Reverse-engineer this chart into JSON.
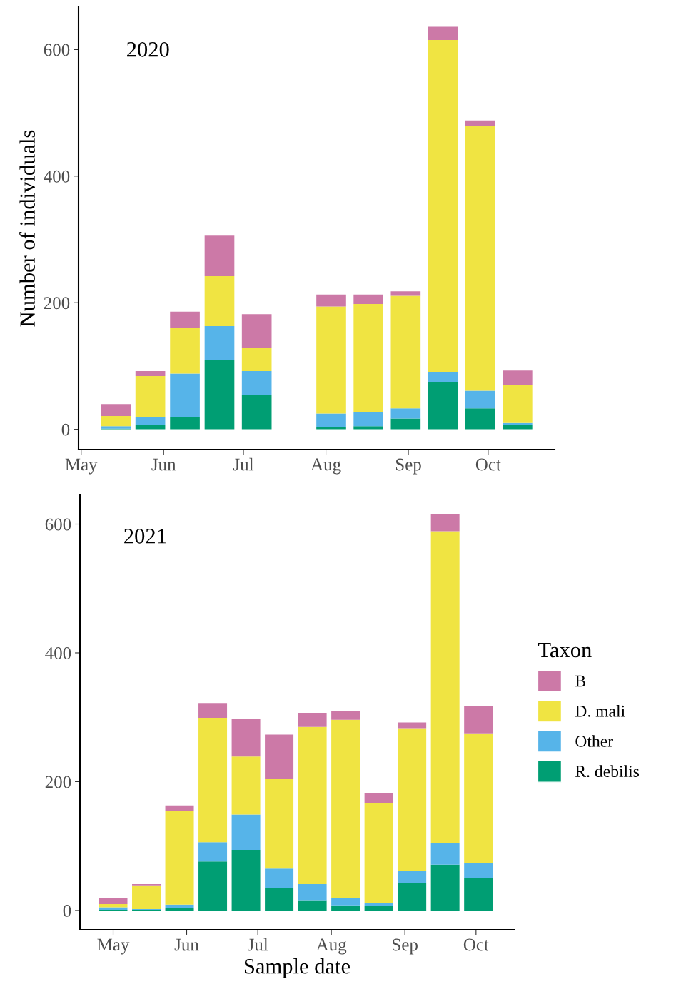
{
  "chart_data": [
    {
      "type": "bar",
      "stacked": true,
      "annotations": [
        "2020"
      ],
      "ylabel": "Number of individuals",
      "x": [
        "2020-05-14",
        "2020-05-27",
        "2020-06-09",
        "2020-06-22",
        "2020-07-06",
        "2020-08-03",
        "2020-08-17",
        "2020-08-31",
        "2020-09-14",
        "2020-09-28",
        "2020-10-12"
      ],
      "series": [
        {
          "color": "#009e73",
          "values": [
            1,
            7,
            20,
            110,
            54,
            4,
            5,
            17,
            75,
            33,
            7
          ]
        },
        {
          "color": "#56b4e9",
          "values": [
            4,
            12,
            68,
            53,
            38,
            21,
            22,
            16,
            15,
            28,
            3
          ]
        },
        {
          "color": "#f0e442",
          "values": [
            16,
            65,
            72,
            79,
            36,
            169,
            171,
            178,
            525,
            418,
            60
          ]
        },
        {
          "color": "#cc79a7",
          "values": [
            19,
            8,
            26,
            64,
            54,
            19,
            15,
            7,
            21,
            9,
            23
          ]
        }
      ],
      "xlim": [
        "2020-04-30",
        "2020-10-26"
      ],
      "ylim": [
        -32,
        667
      ],
      "yticks": [
        0,
        200,
        400,
        600
      ],
      "xticks": [
        {
          "value": "2020-05-01",
          "label": "May"
        },
        {
          "value": "2020-06-01",
          "label": "Jun"
        },
        {
          "value": "2020-07-01",
          "label": "Jul"
        },
        {
          "value": "2020-08-01",
          "label": "Aug"
        },
        {
          "value": "2020-09-01",
          "label": "Sep"
        },
        {
          "value": "2020-10-01",
          "label": "Oct"
        }
      ],
      "grid": false,
      "legend": false
    },
    {
      "type": "bar",
      "stacked": true,
      "annotations": [
        "2021"
      ],
      "xlabel": "Sample date",
      "legend_title": "Taxon",
      "x": [
        "2021-05-01",
        "2021-05-15",
        "2021-05-29",
        "2021-06-12",
        "2021-06-26",
        "2021-07-10",
        "2021-07-24",
        "2021-08-07",
        "2021-08-21",
        "2021-09-04",
        "2021-09-18",
        "2021-10-02"
      ],
      "series": [
        {
          "name": "R. debilis",
          "color": "#009e73",
          "values": [
            1,
            1,
            4,
            76,
            94,
            35,
            16,
            8,
            7,
            43,
            71,
            50
          ]
        },
        {
          "name": "Other",
          "color": "#56b4e9",
          "values": [
            4,
            1,
            5,
            30,
            55,
            30,
            25,
            12,
            5,
            19,
            33,
            23
          ]
        },
        {
          "name": "D. mali",
          "color": "#f0e442",
          "values": [
            5,
            37,
            145,
            193,
            90,
            140,
            244,
            276,
            155,
            221,
            485,
            202
          ]
        },
        {
          "name": "B",
          "color": "#cc79a7",
          "values": [
            10,
            2,
            9,
            23,
            58,
            68,
            22,
            13,
            15,
            9,
            27,
            42
          ]
        }
      ],
      "xlim": [
        "2021-04-17",
        "2021-10-17"
      ],
      "ylim": [
        -30,
        646
      ],
      "yticks": [
        0,
        200,
        400,
        600
      ],
      "xticks": [
        {
          "value": "2021-05-01",
          "label": "May"
        },
        {
          "value": "2021-06-01",
          "label": "Jun"
        },
        {
          "value": "2021-07-01",
          "label": "Jul"
        },
        {
          "value": "2021-08-01",
          "label": "Aug"
        },
        {
          "value": "2021-09-01",
          "label": "Sep"
        },
        {
          "value": "2021-10-01",
          "label": "Oct"
        }
      ],
      "grid": false,
      "legend": "right"
    }
  ]
}
